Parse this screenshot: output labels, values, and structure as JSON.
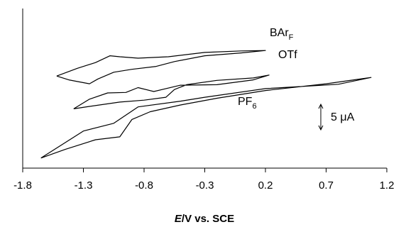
{
  "chart_data": {
    "type": "line",
    "xlabel_italic": "E",
    "xlabel_rest": "/V vs. SCE",
    "xlim": [
      -1.8,
      1.2
    ],
    "x_ticks": [
      "-1.8",
      "-1.3",
      "-0.8",
      "-0.3",
      "0.2",
      "0.7",
      "1.2"
    ],
    "x_tick_values": [
      -1.8,
      -1.3,
      -0.8,
      -0.3,
      0.2,
      0.7,
      1.2
    ],
    "y_axis_ticks": false,
    "scale_bar": {
      "value": 5,
      "label": "5 μA"
    },
    "series": [
      {
        "label_main": "BAr",
        "label_sub": "F",
        "cycle": [
          [
            -1.52,
            1.0
          ],
          [
            -1.42,
            0.2
          ],
          [
            -1.25,
            -0.6
          ],
          [
            -1.18,
            0.4
          ],
          [
            -1.05,
            1.8
          ],
          [
            -0.9,
            2.4
          ],
          [
            -0.7,
            3.0
          ],
          [
            -0.55,
            4.0
          ],
          [
            -0.3,
            5.2
          ],
          [
            0.0,
            5.8
          ],
          [
            0.2,
            6.3
          ],
          [
            0.0,
            6.2
          ],
          [
            -0.3,
            5.9
          ],
          [
            -0.6,
            5.0
          ],
          [
            -0.85,
            4.7
          ],
          [
            -1.0,
            5.0
          ],
          [
            -1.08,
            5.2
          ],
          [
            -1.2,
            3.8
          ],
          [
            -1.35,
            2.6
          ],
          [
            -1.52,
            1.0
          ]
        ]
      },
      {
        "label_main": "OTf",
        "label_sub": "",
        "cycle": [
          [
            -1.38,
            -5.8
          ],
          [
            -1.25,
            -5.3
          ],
          [
            -1.0,
            -4.4
          ],
          [
            -0.8,
            -4.0
          ],
          [
            -0.62,
            -3.4
          ],
          [
            -0.55,
            -1.8
          ],
          [
            -0.45,
            -0.8
          ],
          [
            -0.2,
            0.1
          ],
          [
            0.1,
            0.6
          ],
          [
            0.23,
            1.2
          ],
          [
            0.1,
            0.2
          ],
          [
            -0.2,
            -0.8
          ],
          [
            -0.5,
            -0.9
          ],
          [
            -0.72,
            -2.2
          ],
          [
            -0.85,
            -1.4
          ],
          [
            -0.95,
            -2.4
          ],
          [
            -1.1,
            -2.5
          ],
          [
            -1.25,
            -3.8
          ],
          [
            -1.38,
            -5.8
          ]
        ]
      },
      {
        "label_main": "PF",
        "label_sub": "6",
        "cycle": [
          [
            -1.65,
            -16.0
          ],
          [
            -1.45,
            -14.2
          ],
          [
            -1.2,
            -12.2
          ],
          [
            -1.0,
            -11.6
          ],
          [
            -0.9,
            -8.0
          ],
          [
            -0.75,
            -6.4
          ],
          [
            -0.5,
            -5.0
          ],
          [
            -0.2,
            -3.6
          ],
          [
            0.2,
            -2.0
          ],
          [
            0.7,
            -0.6
          ],
          [
            1.07,
            0.7
          ],
          [
            0.8,
            -0.7
          ],
          [
            0.2,
            -1.6
          ],
          [
            -0.3,
            -3.4
          ],
          [
            -0.5,
            -4.2
          ],
          [
            -0.85,
            -5.4
          ],
          [
            -1.05,
            -8.8
          ],
          [
            -1.3,
            -10.4
          ],
          [
            -1.65,
            -16.0
          ]
        ]
      }
    ]
  }
}
